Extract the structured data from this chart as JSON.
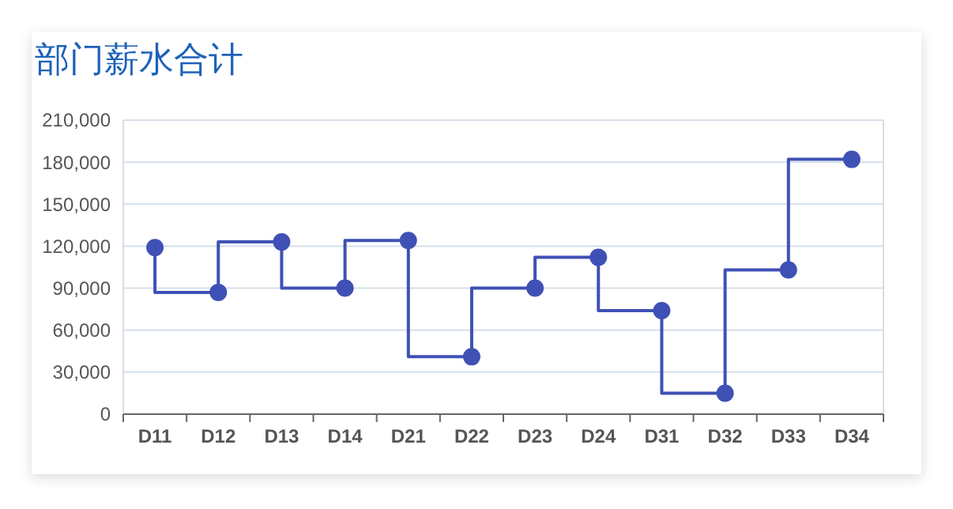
{
  "chart_data": {
    "type": "step",
    "title": "部门薪水合计",
    "categories": [
      "D11",
      "D12",
      "D13",
      "D14",
      "D21",
      "D22",
      "D23",
      "D24",
      "D31",
      "D32",
      "D33",
      "D34"
    ],
    "series": [
      {
        "color": "#3f51b5",
        "values": [
          119000,
          87000,
          123000,
          90000,
          124000,
          41000,
          90000,
          112000,
          74000,
          15000,
          103000,
          182000
        ]
      }
    ],
    "ylim": [
      0,
      210000
    ],
    "yticks": [
      {
        "value": 0,
        "label": "0"
      },
      {
        "value": 30000,
        "label": "30,000"
      },
      {
        "value": 60000,
        "label": "60,000"
      },
      {
        "value": 90000,
        "label": "90,000"
      },
      {
        "value": 120000,
        "label": "120,000"
      },
      {
        "value": 150000,
        "label": "150,000"
      },
      {
        "value": 180000,
        "label": "180,000"
      },
      {
        "value": 210000,
        "label": "210,000"
      }
    ],
    "grid": "y",
    "marker": "circle",
    "line_style": "solid"
  }
}
